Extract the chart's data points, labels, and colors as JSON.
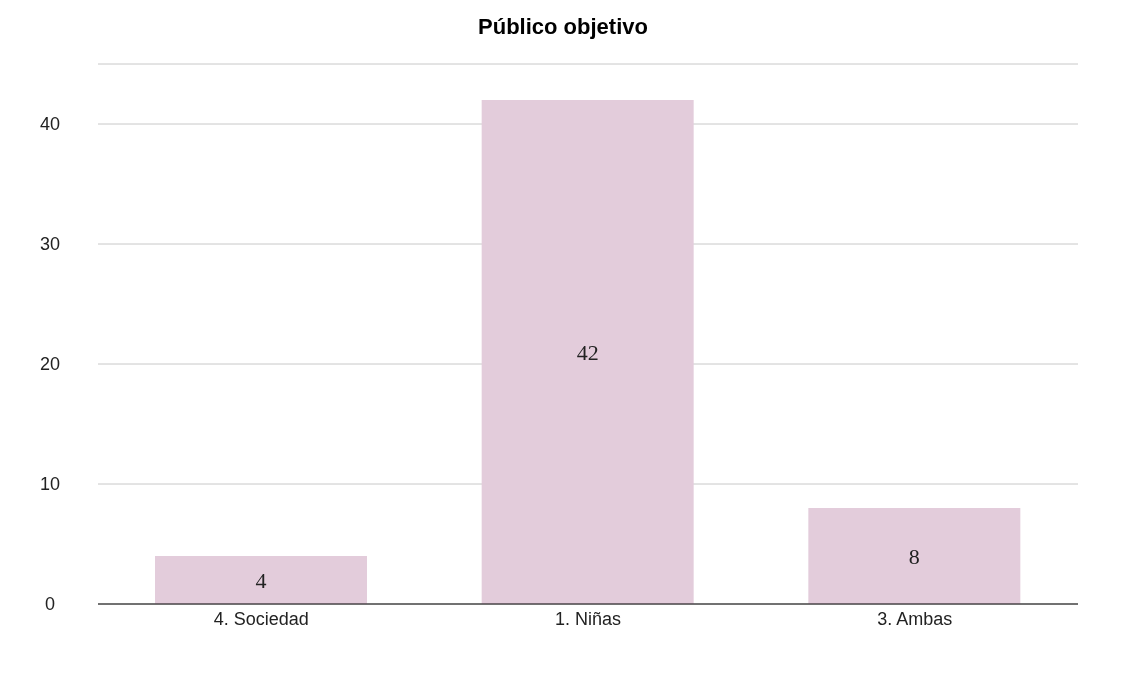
{
  "chart_data": {
    "type": "bar",
    "title": "Público objetivo",
    "categories": [
      "4. Sociedad",
      "1. Niñas",
      "3. Ambas"
    ],
    "values": [
      4,
      42,
      8
    ],
    "color": "#e3ccdb",
    "ylim": [
      0,
      45
    ],
    "yticks": [
      0,
      10,
      20,
      30,
      40
    ],
    "grid": "y",
    "data_labels": true
  }
}
